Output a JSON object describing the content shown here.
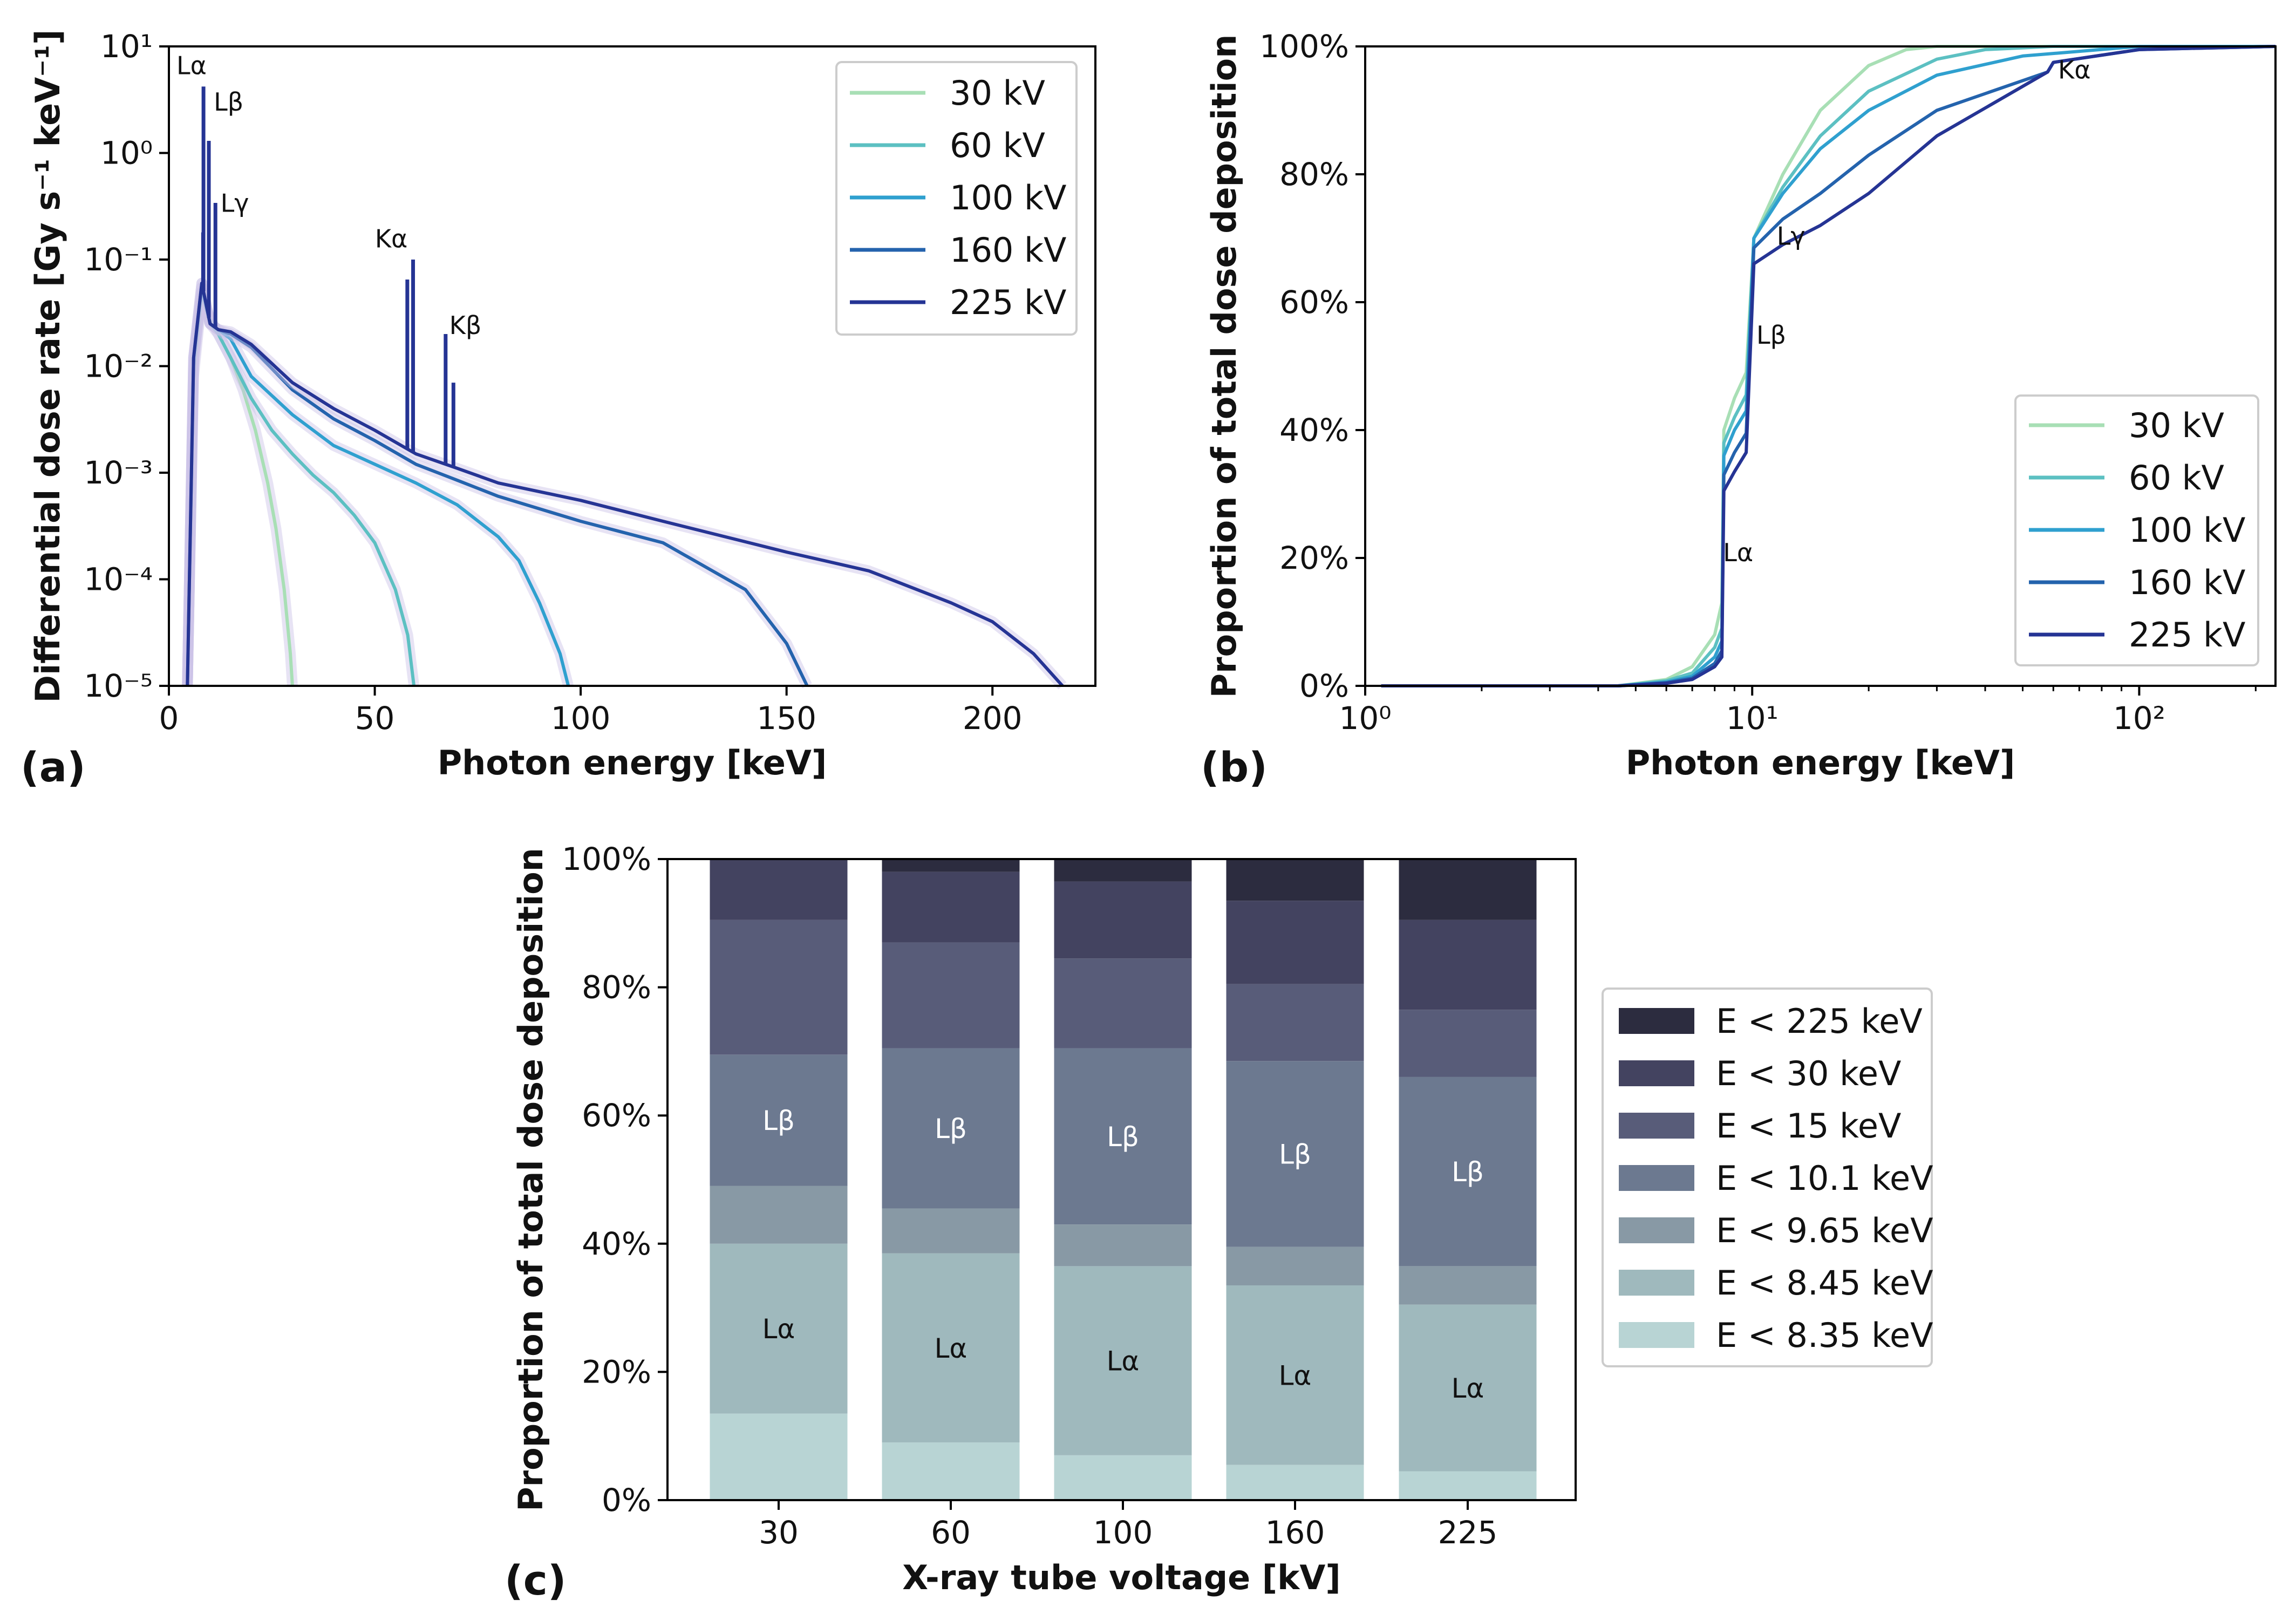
{
  "figure_labels": {
    "a": "(a)",
    "b": "(b)",
    "c": "(c)"
  },
  "chart_data": [
    {
      "id": "a",
      "type": "line",
      "xlabel": "Photon energy [keV]",
      "ylabel": "Differential dose rate [Gy s⁻¹ keV⁻¹]",
      "yscale": "log",
      "xlim": [
        0,
        225
      ],
      "ylim": [
        1e-05,
        10
      ],
      "x_ticks": [
        "0",
        "50",
        "100",
        "150",
        "200"
      ],
      "x_tick_values": [
        0,
        50,
        100,
        150,
        200
      ],
      "y_ticks": [
        "10⁻⁵",
        "10⁻⁴",
        "10⁻³",
        "10⁻²",
        "10⁻¹",
        "10⁰",
        "10¹"
      ],
      "y_tick_values": [
        1e-05,
        0.0001,
        0.001,
        0.01,
        0.1,
        1,
        10
      ],
      "legend_position": "top-right",
      "series": [
        {
          "name": "30 kV",
          "color": "#a8dfb5",
          "x": [
            4.5,
            6,
            8,
            10,
            12,
            15,
            18,
            21,
            24,
            26,
            28,
            29.5,
            30
          ],
          "y": [
            1e-05,
            0.008,
            0.045,
            0.028,
            0.02,
            0.012,
            0.006,
            0.0025,
            0.0008,
            0.0003,
            8e-05,
            2e-05,
            1e-05
          ]
        },
        {
          "name": "60 kV",
          "color": "#5cc0c2",
          "x": [
            4.5,
            6,
            8,
            10,
            12,
            15,
            20,
            25,
            30,
            35,
            40,
            45,
            50,
            55,
            58,
            59.5
          ],
          "y": [
            1e-05,
            0.01,
            0.05,
            0.025,
            0.02,
            0.012,
            0.005,
            0.0025,
            0.0015,
            0.00095,
            0.00065,
            0.0004,
            0.00022,
            8e-05,
            3e-05,
            1e-05
          ]
        },
        {
          "name": "100 kV",
          "color": "#2fa0cf",
          "x": [
            4.5,
            6,
            8,
            10,
            12,
            15,
            20,
            30,
            40,
            50,
            60,
            70,
            80,
            85,
            90,
            95,
            97
          ],
          "y": [
            1e-05,
            0.012,
            0.055,
            0.025,
            0.022,
            0.018,
            0.008,
            0.0035,
            0.0018,
            0.0012,
            0.0008,
            0.0005,
            0.00025,
            0.00015,
            6e-05,
            2e-05,
            1e-05
          ]
        },
        {
          "name": "160 kV",
          "color": "#2463ad",
          "x": [
            4.5,
            6,
            8,
            10,
            12,
            15,
            20,
            30,
            40,
            50,
            60,
            70,
            80,
            100,
            120,
            140,
            150,
            155
          ],
          "y": [
            1e-05,
            0.012,
            0.06,
            0.025,
            0.022,
            0.02,
            0.015,
            0.006,
            0.0032,
            0.002,
            0.0012,
            0.00085,
            0.0006,
            0.00035,
            0.00022,
            8e-05,
            2.5e-05,
            1e-05
          ]
        },
        {
          "name": "225 kV",
          "color": "#253494",
          "x": [
            4.5,
            6,
            8,
            10,
            12,
            15,
            20,
            30,
            40,
            50,
            60,
            70,
            80,
            100,
            120,
            150,
            170,
            190,
            200,
            210,
            217
          ],
          "y": [
            1e-05,
            0.012,
            0.06,
            0.025,
            0.022,
            0.021,
            0.016,
            0.007,
            0.004,
            0.0025,
            0.0015,
            0.0011,
            0.0008,
            0.00055,
            0.00035,
            0.00018,
            0.00012,
            6e-05,
            4e-05,
            2e-05,
            1e-05
          ]
        }
      ],
      "peaks": [
        {
          "x": 8.3,
          "y": 0.18
        },
        {
          "x": 8.4,
          "y": 4.2
        },
        {
          "x": 9.7,
          "y": 1.3
        },
        {
          "x": 11.3,
          "y": 0.34
        },
        {
          "x": 57.9,
          "y": 0.065
        },
        {
          "x": 59.3,
          "y": 0.1
        },
        {
          "x": 67.2,
          "y": 0.02
        },
        {
          "x": 69.1,
          "y": 0.007
        }
      ],
      "annotations": [
        {
          "text": "Lα",
          "x": 5.5,
          "y": 5.5
        },
        {
          "text": "Lβ",
          "x": 14.5,
          "y": 2.5
        },
        {
          "text": "Lγ",
          "x": 16,
          "y": 0.28
        },
        {
          "text": "Kα",
          "x": 54,
          "y": 0.13
        },
        {
          "text": "Kβ",
          "x": 72,
          "y": 0.02
        }
      ]
    },
    {
      "id": "b",
      "type": "line",
      "xlabel": "Photon energy [keV]",
      "ylabel": "Proportion of total dose deposition",
      "xscale": "log",
      "xlim": [
        1,
        225
      ],
      "ylim": [
        0,
        100
      ],
      "x_ticks": [
        "10⁰",
        "10¹",
        "10²"
      ],
      "x_tick_values": [
        1,
        10,
        100
      ],
      "y_ticks": [
        "0%",
        "20%",
        "40%",
        "60%",
        "80%",
        "100%"
      ],
      "y_tick_values": [
        0,
        20,
        40,
        60,
        80,
        100
      ],
      "legend_position": "lower-right",
      "series": [
        {
          "name": "30 kV",
          "color": "#a8dfb5",
          "x": [
            1.1,
            4.5,
            6,
            7,
            8,
            8.35,
            8.45,
            9,
            9.65,
            10.1,
            12,
            15,
            20,
            25,
            30,
            225
          ],
          "y": [
            0,
            0,
            1,
            3,
            8,
            13,
            40,
            45,
            49,
            70,
            80,
            90,
            97,
            99.5,
            100,
            100
          ]
        },
        {
          "name": "60 kV",
          "color": "#5cc0c2",
          "x": [
            1.1,
            4.5,
            6,
            7,
            8,
            8.35,
            8.45,
            9,
            9.65,
            10.1,
            12,
            15,
            20,
            30,
            40,
            60,
            225
          ],
          "y": [
            0,
            0,
            0.8,
            2,
            6,
            9,
            38,
            42,
            45.5,
            70,
            78,
            86,
            93,
            98,
            99.5,
            100,
            100
          ]
        },
        {
          "name": "100 kV",
          "color": "#2fa0cf",
          "x": [
            1.1,
            4.5,
            6,
            7,
            8,
            8.35,
            8.45,
            9,
            9.65,
            10.1,
            12,
            15,
            20,
            30,
            50,
            100,
            225
          ],
          "y": [
            0,
            0,
            0.6,
            1.5,
            4.5,
            7,
            36,
            40,
            43,
            70,
            77,
            84,
            90,
            95.5,
            98.5,
            100,
            100
          ]
        },
        {
          "name": "160 kV",
          "color": "#2463ad",
          "x": [
            1.1,
            4.5,
            6,
            7,
            8,
            8.35,
            8.45,
            9,
            9.65,
            10.1,
            12,
            15,
            20,
            30,
            58,
            60,
            100,
            225
          ],
          "y": [
            0,
            0,
            0.5,
            1.2,
            3.5,
            5.5,
            33,
            36.5,
            39.5,
            68.5,
            73,
            77,
            83,
            90,
            96,
            97.5,
            99.5,
            100
          ]
        },
        {
          "name": "225 kV",
          "color": "#253494",
          "x": [
            1.1,
            4.5,
            6,
            7,
            8,
            8.35,
            8.45,
            9,
            9.65,
            10.1,
            12,
            15,
            20,
            30,
            58,
            60,
            100,
            225
          ],
          "y": [
            0,
            0,
            0.4,
            1,
            3,
            4.5,
            30.5,
            33.5,
            36.5,
            66,
            69,
            72,
            77,
            86,
            96,
            97.5,
            99.5,
            100
          ]
        }
      ],
      "annotations": [
        {
          "text": "Lα",
          "x": 9.2,
          "y": 19.5
        },
        {
          "text": "Lβ",
          "x": 11.2,
          "y": 53.5
        },
        {
          "text": "Lγ",
          "x": 12.6,
          "y": 69
        },
        {
          "text": "Kα",
          "x": 68,
          "y": 95
        }
      ]
    },
    {
      "id": "c",
      "type": "bar",
      "stacked": true,
      "xlabel": "X-ray tube voltage [kV]",
      "ylabel": "Proportion of total dose deposition",
      "categories": [
        "30",
        "60",
        "100",
        "160",
        "225"
      ],
      "ylim": [
        0,
        100
      ],
      "y_ticks": [
        "0%",
        "20%",
        "40%",
        "60%",
        "80%",
        "100%"
      ],
      "y_tick_values": [
        0,
        20,
        40,
        60,
        80,
        100
      ],
      "legend_position": "center-right",
      "series": [
        {
          "name": "E < 8.35 keV",
          "color": "#b8d4d4",
          "values": [
            13.5,
            9,
            7,
            5.5,
            4.5
          ]
        },
        {
          "name": "E < 8.45 keV",
          "color": "#9fb9bd",
          "values": [
            26.5,
            29.5,
            29.5,
            28,
            26
          ]
        },
        {
          "name": "E < 9.65 keV",
          "color": "#8899a5",
          "values": [
            9,
            7,
            6.5,
            6,
            6
          ]
        },
        {
          "name": "E < 10.1 keV",
          "color": "#6c7990",
          "values": [
            20.5,
            25,
            27.5,
            29,
            29.5
          ]
        },
        {
          "name": "E < 15 keV",
          "color": "#585c79",
          "values": [
            21,
            16.5,
            14,
            12,
            10.5
          ]
        },
        {
          "name": "E < 30 keV",
          "color": "#434360",
          "values": [
            9.5,
            11,
            12,
            13,
            14
          ]
        },
        {
          "name": "E < 225 keV",
          "color": "#2c2c3f",
          "values": [
            0,
            2,
            3.5,
            6.5,
            9.5
          ]
        }
      ],
      "bar_labels": [
        {
          "text": "Lα",
          "series": 1
        },
        {
          "text": "Lβ",
          "series": 3
        }
      ]
    }
  ]
}
